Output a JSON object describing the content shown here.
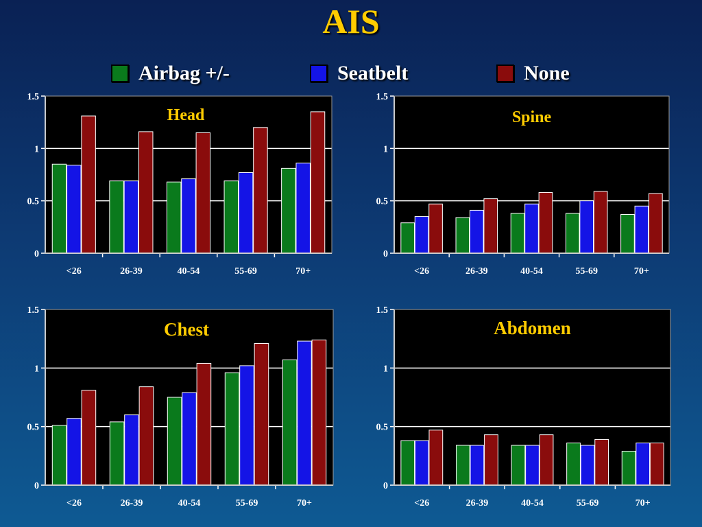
{
  "page": {
    "title": "AIS"
  },
  "legend": [
    {
      "label": "Airbag +/-",
      "color": "#0a7a1c"
    },
    {
      "label": "Seatbelt",
      "color": "#1414e6"
    },
    {
      "label": "None",
      "color": "#8a0c0c"
    }
  ],
  "chart_data": [
    {
      "type": "bar",
      "title": "Head",
      "categories": [
        "<26",
        "26-39",
        "40-54",
        "55-69",
        "70+"
      ],
      "ylim": [
        0,
        1.5
      ],
      "yticks": [
        "0",
        "0.5",
        "1",
        "1.5"
      ],
      "grid": true,
      "series": [
        {
          "name": "Airbag +/-",
          "values": [
            0.85,
            0.69,
            0.68,
            0.69,
            0.81
          ]
        },
        {
          "name": "Seatbelt",
          "values": [
            0.84,
            0.69,
            0.71,
            0.77,
            0.86
          ]
        },
        {
          "name": "None",
          "values": [
            1.31,
            1.16,
            1.15,
            1.2,
            1.35
          ]
        }
      ]
    },
    {
      "type": "bar",
      "title": "Spine",
      "categories": [
        "<26",
        "26-39",
        "40-54",
        "55-69",
        "70+"
      ],
      "ylim": [
        0,
        1.5
      ],
      "yticks": [
        "0",
        "0.5",
        "1",
        "1.5"
      ],
      "grid": true,
      "series": [
        {
          "name": "Airbag +/-",
          "values": [
            0.29,
            0.34,
            0.38,
            0.38,
            0.37
          ]
        },
        {
          "name": "Seatbelt",
          "values": [
            0.35,
            0.41,
            0.47,
            0.5,
            0.45
          ]
        },
        {
          "name": "None",
          "values": [
            0.47,
            0.52,
            0.58,
            0.59,
            0.57
          ]
        }
      ]
    },
    {
      "type": "bar",
      "title": "Chest",
      "categories": [
        "<26",
        "26-39",
        "40-54",
        "55-69",
        "70+"
      ],
      "ylim": [
        0,
        1.5
      ],
      "yticks": [
        "0",
        "0.5",
        "1",
        "1.5"
      ],
      "grid": true,
      "series": [
        {
          "name": "Airbag +/-",
          "values": [
            0.51,
            0.54,
            0.75,
            0.96,
            1.07
          ]
        },
        {
          "name": "Seatbelt",
          "values": [
            0.57,
            0.6,
            0.79,
            1.02,
            1.23
          ]
        },
        {
          "name": "None",
          "values": [
            0.81,
            0.84,
            1.04,
            1.21,
            1.24
          ]
        }
      ]
    },
    {
      "type": "bar",
      "title": "Abdomen",
      "categories": [
        "<26",
        "26-39",
        "40-54",
        "55-69",
        "70+"
      ],
      "ylim": [
        0,
        1.5
      ],
      "yticks": [
        "0",
        "0.5",
        "1",
        "1.5"
      ],
      "grid": true,
      "series": [
        {
          "name": "Airbag +/-",
          "values": [
            0.38,
            0.34,
            0.34,
            0.36,
            0.29
          ]
        },
        {
          "name": "Seatbelt",
          "values": [
            0.38,
            0.34,
            0.34,
            0.34,
            0.36
          ]
        },
        {
          "name": "None",
          "values": [
            0.47,
            0.43,
            0.43,
            0.39,
            0.36
          ]
        }
      ]
    }
  ]
}
